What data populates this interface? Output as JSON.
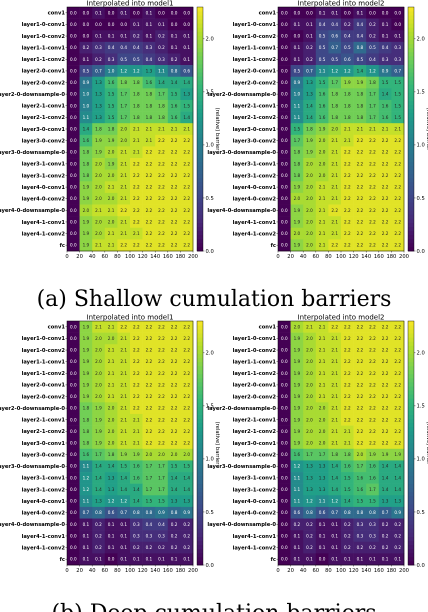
{
  "captions": {
    "top": "(a) Shallow cumulation barriers",
    "bottom": "(b) Deep cumulation barriers"
  },
  "colormap": [
    "#440154",
    "#482878",
    "#3e4989",
    "#31688e",
    "#26828e",
    "#1f9e89",
    "#35b779",
    "#6ece58",
    "#b5de2b",
    "#fde725"
  ],
  "chart_data": [
    {
      "type": "heatmap",
      "title": "Interpolated into model1",
      "rows": [
        "conv1",
        "layer1-0-conv1",
        "layer1-0-conv2",
        "layer1-1-conv1",
        "layer1-1-conv2",
        "layer2-0-conv1",
        "layer2-0-conv2",
        "layer2-0-downsample-0",
        "layer2-1-conv1",
        "layer2-1-conv2",
        "layer3-0-conv1",
        "layer3-0-conv2",
        "layer3-0-downsample-0",
        "layer3-1-conv1",
        "layer3-1-conv2",
        "layer4-0-conv1",
        "layer4-0-conv2",
        "layer4-0-downsample-0",
        "layer4-1-conv1",
        "layer4-1-conv2",
        "fc"
      ],
      "x_ticks": [
        "0",
        "20",
        "40",
        "60",
        "80",
        "100",
        "120",
        "140",
        "160",
        "180",
        "200"
      ],
      "colorbar_label": "(relative) barrier",
      "colorbar_ticks": [
        "0.0",
        "0.5",
        "1.0",
        "1.5",
        "2.0"
      ],
      "zlim": [
        0,
        2.3
      ],
      "values": [
        [
          0.0,
          0.0,
          0.1,
          0.0,
          0.1,
          0.0,
          0.1,
          0.0,
          0.0,
          0.0
        ],
        [
          0.0,
          0.0,
          0.0,
          0.0,
          0.0,
          0.1,
          0.1,
          0.1,
          0.0,
          0.0
        ],
        [
          0.0,
          0.0,
          0.1,
          0.1,
          0.1,
          0.2,
          0.1,
          0.2,
          0.1,
          0.1
        ],
        [
          0.0,
          0.2,
          0.3,
          0.4,
          0.4,
          0.4,
          0.3,
          0.2,
          0.1,
          0.1
        ],
        [
          0.0,
          0.1,
          0.2,
          0.3,
          0.5,
          0.5,
          0.4,
          0.3,
          0.2,
          0.1
        ],
        [
          0.0,
          0.5,
          0.7,
          1.0,
          1.2,
          1.2,
          1.3,
          1.1,
          0.8,
          0.6
        ],
        [
          0.0,
          0.9,
          1.3,
          1.6,
          1.8,
          1.8,
          1.6,
          1.4,
          1.4,
          1.4
        ],
        [
          0.0,
          1.0,
          1.3,
          1.5,
          1.7,
          1.8,
          1.8,
          1.7,
          1.5,
          1.3
        ],
        [
          0.0,
          1.0,
          1.3,
          1.5,
          1.7,
          1.8,
          1.8,
          1.8,
          1.6,
          1.5
        ],
        [
          0.0,
          1.1,
          1.3,
          1.5,
          1.7,
          1.8,
          1.8,
          1.8,
          1.6,
          1.4
        ],
        [
          0.0,
          1.4,
          1.8,
          1.8,
          2.0,
          2.1,
          2.1,
          2.1,
          2.1,
          2.1
        ],
        [
          0.0,
          1.6,
          1.9,
          1.9,
          2.0,
          2.1,
          2.1,
          2.2,
          2.2,
          2.2
        ],
        [
          0.0,
          1.8,
          1.9,
          2.0,
          2.1,
          2.1,
          2.2,
          2.2,
          2.2,
          2.2
        ],
        [
          0.0,
          1.8,
          2.0,
          1.9,
          2.1,
          2.2,
          2.2,
          2.2,
          2.2,
          2.2
        ],
        [
          0.0,
          1.8,
          2.0,
          2.0,
          2.1,
          2.2,
          2.2,
          2.2,
          2.2,
          2.2
        ],
        [
          0.0,
          1.9,
          2.0,
          2.1,
          2.1,
          2.2,
          2.2,
          2.2,
          2.2,
          2.2
        ],
        [
          0.0,
          1.9,
          2.0,
          2.0,
          2.1,
          2.2,
          2.2,
          2.2,
          2.2,
          2.2
        ],
        [
          0.0,
          2.0,
          2.1,
          2.1,
          2.2,
          2.2,
          2.2,
          2.2,
          2.2,
          2.2
        ],
        [
          0.0,
          1.9,
          2.0,
          2.0,
          2.1,
          2.2,
          2.2,
          2.2,
          2.2,
          2.2
        ],
        [
          0.0,
          1.9,
          2.0,
          2.1,
          2.1,
          2.1,
          2.2,
          2.2,
          2.2,
          2.2
        ],
        [
          0.0,
          1.9,
          2.1,
          2.1,
          2.2,
          2.2,
          2.2,
          2.2,
          2.2,
          2.2
        ]
      ]
    },
    {
      "type": "heatmap",
      "title": "Interpolated into model2",
      "rows": [
        "conv1",
        "layer1-0-conv1",
        "layer1-0-conv2",
        "layer1-1-conv1",
        "layer1-1-conv2",
        "layer2-0-conv1",
        "layer2-0-conv2",
        "layer2-0-downsample-0",
        "layer2-1-conv1",
        "layer2-1-conv2",
        "layer3-0-conv1",
        "layer3-0-conv2",
        "layer3-0-downsample-0",
        "layer3-1-conv1",
        "layer3-1-conv2",
        "layer4-0-conv1",
        "layer4-0-conv2",
        "layer4-0-downsample-0",
        "layer4-1-conv1",
        "layer4-1-conv2",
        "fc"
      ],
      "x_ticks": [
        "0",
        "20",
        "40",
        "60",
        "80",
        "100",
        "120",
        "140",
        "160",
        "180",
        "200"
      ],
      "colorbar_label": "(relative) barrier",
      "colorbar_ticks": [
        "0.0",
        "0.5",
        "1.0",
        "1.5",
        "2.0"
      ],
      "zlim": [
        0,
        2.3
      ],
      "values": [
        [
          0.0,
          0.0,
          0.0,
          0.1,
          0.1,
          0.0,
          0.1,
          0.0,
          0.0,
          0.0
        ],
        [
          0.0,
          0.1,
          0.1,
          0.4,
          0.4,
          0.2,
          0.4,
          0.2,
          0.1,
          0.0
        ],
        [
          0.0,
          0.0,
          0.1,
          0.5,
          0.6,
          0.4,
          0.4,
          0.2,
          0.1,
          0.1
        ],
        [
          0.0,
          0.1,
          0.2,
          0.5,
          0.7,
          0.5,
          0.8,
          0.5,
          0.4,
          0.3
        ],
        [
          0.0,
          0.1,
          0.2,
          0.5,
          0.5,
          0.6,
          0.5,
          0.4,
          0.3,
          0.3
        ],
        [
          0.0,
          0.5,
          0.7,
          1.1,
          1.2,
          1.2,
          1.4,
          1.2,
          0.9,
          0.7
        ],
        [
          0.0,
          0.9,
          1.3,
          1.5,
          1.7,
          1.9,
          1.9,
          1.8,
          1.5,
          1.5
        ],
        [
          0.0,
          1.0,
          1.3,
          1.6,
          1.8,
          1.8,
          1.8,
          1.7,
          1.4,
          1.5
        ],
        [
          0.0,
          1.1,
          1.4,
          1.6,
          1.8,
          1.8,
          1.8,
          1.7,
          1.6,
          1.5
        ],
        [
          0.0,
          1.1,
          1.4,
          1.6,
          1.8,
          1.8,
          1.8,
          1.7,
          1.6,
          1.5
        ],
        [
          0.0,
          1.5,
          1.8,
          1.9,
          2.0,
          2.1,
          2.1,
          2.1,
          2.1,
          2.1
        ],
        [
          0.0,
          1.7,
          1.9,
          2.0,
          2.1,
          2.1,
          2.2,
          2.2,
          2.2,
          2.2
        ],
        [
          0.0,
          1.8,
          1.9,
          2.0,
          2.1,
          2.2,
          2.2,
          2.2,
          2.2,
          2.2
        ],
        [
          0.0,
          1.8,
          2.0,
          2.0,
          2.1,
          2.2,
          2.2,
          2.2,
          2.2,
          2.2
        ],
        [
          0.0,
          1.8,
          2.0,
          2.0,
          2.1,
          2.2,
          2.2,
          2.2,
          2.2,
          2.2
        ],
        [
          0.0,
          1.9,
          2.0,
          2.1,
          2.1,
          2.2,
          2.2,
          2.2,
          2.2,
          2.2
        ],
        [
          0.0,
          2.0,
          2.0,
          2.1,
          2.1,
          2.2,
          2.2,
          2.2,
          2.2,
          2.2
        ],
        [
          0.0,
          1.9,
          2.0,
          2.1,
          2.2,
          2.2,
          2.2,
          2.2,
          2.2,
          2.2
        ],
        [
          0.0,
          1.9,
          2.0,
          2.1,
          2.1,
          2.2,
          2.2,
          2.2,
          2.2,
          2.2
        ],
        [
          0.0,
          2.0,
          2.0,
          2.1,
          2.1,
          2.2,
          2.2,
          2.2,
          2.2,
          2.2
        ],
        [
          0.0,
          1.9,
          2.0,
          2.1,
          2.2,
          2.2,
          2.2,
          2.2,
          2.2,
          2.2
        ]
      ]
    },
    {
      "type": "heatmap",
      "title": "Interpolated into model1",
      "rows": [
        "conv1",
        "layer1-0-conv1",
        "layer1-0-conv2",
        "layer1-1-conv1",
        "layer1-1-conv2",
        "layer2-0-conv1",
        "layer2-0-conv2",
        "layer2-0-downsample-0",
        "layer2-1-conv1",
        "layer2-1-conv2",
        "layer3-0-conv1",
        "layer3-0-conv2",
        "layer3-0-downsample-0",
        "layer3-1-conv1",
        "layer3-1-conv2",
        "layer4-0-conv1",
        "layer4-0-conv2",
        "layer4-0-downsample-0",
        "layer4-1-conv1",
        "layer4-1-conv2",
        "fc"
      ],
      "x_ticks": [
        "0",
        "20",
        "40",
        "60",
        "80",
        "100",
        "120",
        "140",
        "160",
        "180",
        "200"
      ],
      "colorbar_label": "(relative) barrier",
      "colorbar_ticks": [
        "0.0",
        "0.5",
        "1.0",
        "1.5",
        "2.0"
      ],
      "zlim": [
        0,
        2.3
      ],
      "values": [
        [
          0.0,
          1.9,
          2.1,
          2.1,
          2.2,
          2.2,
          2.2,
          2.2,
          2.2,
          2.2
        ],
        [
          0.0,
          1.9,
          2.0,
          2.0,
          2.1,
          2.2,
          2.2,
          2.2,
          2.2,
          2.2
        ],
        [
          0.0,
          1.9,
          2.0,
          2.1,
          2.1,
          2.2,
          2.2,
          2.2,
          2.2,
          2.2
        ],
        [
          0.0,
          1.9,
          2.0,
          2.1,
          2.1,
          2.2,
          2.2,
          2.2,
          2.2,
          2.2
        ],
        [
          0.0,
          1.9,
          2.0,
          2.1,
          2.1,
          2.2,
          2.2,
          2.2,
          2.2,
          2.2
        ],
        [
          0.0,
          1.9,
          2.0,
          2.1,
          2.1,
          2.2,
          2.2,
          2.2,
          2.2,
          2.2
        ],
        [
          0.0,
          1.9,
          2.0,
          2.1,
          2.1,
          2.2,
          2.2,
          2.2,
          2.2,
          2.2
        ],
        [
          0.0,
          1.8,
          1.9,
          2.0,
          2.1,
          2.2,
          2.2,
          2.2,
          2.2,
          2.2
        ],
        [
          0.0,
          1.8,
          1.9,
          2.0,
          2.1,
          2.1,
          2.2,
          2.2,
          2.2,
          2.2
        ],
        [
          0.0,
          1.8,
          1.9,
          2.0,
          2.1,
          2.1,
          2.2,
          2.2,
          2.2,
          2.2
        ],
        [
          0.0,
          1.8,
          1.9,
          2.0,
          2.1,
          2.1,
          2.2,
          2.2,
          2.2,
          2.2
        ],
        [
          0.0,
          1.6,
          1.7,
          1.8,
          1.9,
          1.9,
          2.0,
          2.0,
          2.0,
          2.0
        ],
        [
          0.0,
          1.1,
          1.4,
          1.4,
          1.5,
          1.6,
          1.7,
          1.7,
          1.5,
          1.5
        ],
        [
          0.0,
          1.2,
          1.4,
          1.3,
          1.4,
          1.6,
          1.7,
          1.7,
          1.4,
          1.4
        ],
        [
          0.0,
          1.2,
          1.4,
          1.3,
          1.4,
          1.4,
          1.7,
          1.7,
          1.4,
          1.4
        ],
        [
          0.0,
          1.1,
          1.3,
          1.2,
          1.2,
          1.4,
          1.5,
          1.5,
          1.3,
          1.3
        ],
        [
          0.0,
          0.7,
          0.8,
          0.6,
          0.7,
          0.8,
          0.8,
          0.9,
          0.8,
          0.9
        ],
        [
          0.0,
          0.1,
          0.2,
          0.1,
          0.1,
          0.3,
          0.4,
          0.4,
          0.2,
          0.2
        ],
        [
          0.0,
          0.1,
          0.2,
          0.1,
          0.1,
          0.3,
          0.3,
          0.3,
          0.2,
          0.2
        ],
        [
          0.0,
          0.1,
          0.2,
          0.1,
          0.1,
          0.2,
          0.2,
          0.2,
          0.2,
          0.2
        ],
        [
          0.0,
          0.1,
          0.1,
          0.0,
          0.1,
          0.1,
          0.1,
          0.1,
          0.1,
          0.1
        ]
      ]
    },
    {
      "type": "heatmap",
      "title": "Interpolated into model2",
      "rows": [
        "conv1",
        "layer1-0-conv1",
        "layer1-0-conv2",
        "layer1-1-conv1",
        "layer1-1-conv2",
        "layer2-0-conv1",
        "layer2-0-conv2",
        "layer2-0-downsample-0",
        "layer2-1-conv1",
        "layer2-1-conv2",
        "layer3-0-conv1",
        "layer3-0-conv2",
        "layer3-0-downsample-0",
        "layer3-1-conv1",
        "layer3-1-conv2",
        "layer4-0-conv1",
        "layer4-0-conv2",
        "layer4-0-downsample-0",
        "layer4-1-conv1",
        "layer4-1-conv2",
        "fc"
      ],
      "x_ticks": [
        "0",
        "20",
        "40",
        "60",
        "80",
        "100",
        "120",
        "140",
        "160",
        "180",
        "200"
      ],
      "colorbar_label": "(relative) barrier",
      "colorbar_ticks": [
        "0.0",
        "0.5",
        "1.0",
        "1.5",
        "2.0"
      ],
      "zlim": [
        0,
        2.3
      ],
      "values": [
        [
          0.0,
          2.0,
          2.1,
          2.1,
          2.2,
          2.2,
          2.2,
          2.2,
          2.2,
          2.2
        ],
        [
          0.0,
          1.9,
          2.0,
          2.1,
          2.1,
          2.2,
          2.2,
          2.2,
          2.2,
          2.2
        ],
        [
          0.0,
          1.9,
          2.0,
          2.1,
          2.1,
          2.2,
          2.2,
          2.2,
          2.2,
          2.2
        ],
        [
          0.0,
          1.9,
          2.0,
          2.1,
          2.1,
          2.2,
          2.2,
          2.2,
          2.2,
          2.2
        ],
        [
          0.0,
          1.9,
          2.0,
          2.1,
          2.1,
          2.2,
          2.2,
          2.2,
          2.2,
          2.2
        ],
        [
          0.0,
          1.9,
          2.0,
          2.1,
          2.1,
          2.2,
          2.2,
          2.2,
          2.2,
          2.2
        ],
        [
          0.0,
          1.9,
          2.0,
          2.1,
          2.1,
          2.2,
          2.2,
          2.2,
          2.2,
          2.2
        ],
        [
          0.0,
          1.9,
          2.0,
          2.0,
          2.1,
          2.2,
          2.2,
          2.2,
          2.2,
          2.2
        ],
        [
          0.0,
          1.9,
          2.0,
          2.0,
          2.1,
          2.2,
          2.2,
          2.2,
          2.2,
          2.2
        ],
        [
          0.0,
          1.9,
          2.0,
          2.0,
          2.1,
          2.1,
          2.2,
          2.2,
          2.2,
          2.2
        ],
        [
          0.0,
          1.9,
          2.0,
          2.0,
          2.1,
          2.1,
          2.2,
          2.2,
          2.2,
          2.2
        ],
        [
          0.0,
          1.6,
          1.7,
          1.7,
          1.8,
          1.8,
          2.0,
          1.9,
          1.9,
          1.9
        ],
        [
          0.0,
          1.2,
          1.3,
          1.3,
          1.4,
          1.6,
          1.7,
          1.6,
          1.4,
          1.4
        ],
        [
          0.0,
          1.1,
          1.3,
          1.3,
          1.4,
          1.5,
          1.6,
          1.6,
          1.4,
          1.4
        ],
        [
          0.0,
          1.1,
          1.3,
          1.3,
          1.4,
          1.5,
          1.6,
          1.7,
          1.4,
          1.4
        ],
        [
          0.0,
          1.1,
          1.2,
          1.1,
          1.2,
          1.4,
          1.5,
          1.5,
          1.3,
          1.3
        ],
        [
          0.0,
          0.6,
          0.8,
          0.6,
          0.7,
          0.8,
          0.8,
          0.8,
          0.7,
          0.9
        ],
        [
          0.0,
          0.2,
          0.2,
          0.1,
          0.1,
          0.2,
          0.3,
          0.3,
          0.2,
          0.2
        ],
        [
          0.0,
          0.1,
          0.2,
          0.1,
          0.1,
          0.2,
          0.3,
          0.3,
          0.2,
          0.2
        ],
        [
          0.0,
          0.1,
          0.2,
          0.1,
          0.1,
          0.2,
          0.2,
          0.2,
          0.2,
          0.2
        ],
        [
          0.0,
          0.1,
          0.1,
          0.0,
          0.1,
          0.1,
          0.1,
          0.1,
          0.1,
          0.1
        ]
      ]
    }
  ]
}
